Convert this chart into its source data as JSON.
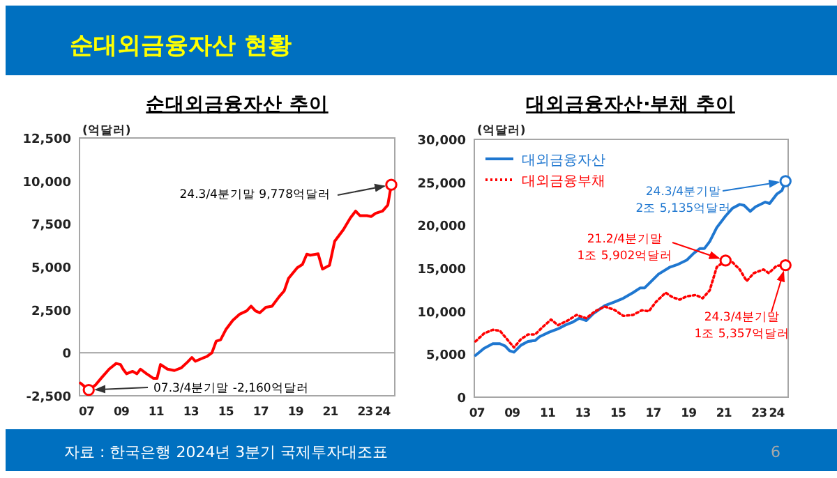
{
  "chart_data": [
    {
      "type": "other",
      "title": "순대외금융자산 현황",
      "annotations": [
        "자료 : 한국은행 2024년 3분기 국제투자대조표",
        "6"
      ]
    },
    {
      "type": "line",
      "title": "순대외금융자산 추이",
      "ylabel": "(억달러)",
      "xlim": [
        2006.6,
        2024.7
      ],
      "ylim": [
        -2500,
        12500
      ],
      "xticks": [
        {
          "value": 2007,
          "label": "07"
        },
        {
          "value": 2009,
          "label": "09"
        },
        {
          "value": 2011,
          "label": "11"
        },
        {
          "value": 2013,
          "label": "13"
        },
        {
          "value": 2015,
          "label": "15"
        },
        {
          "value": 2017,
          "label": "17"
        },
        {
          "value": 2019,
          "label": "19"
        },
        {
          "value": 2021,
          "label": "21"
        },
        {
          "value": 2023,
          "label": "23"
        },
        {
          "value": 2024,
          "label": "24"
        }
      ],
      "yticks": [
        {
          "value": -2500,
          "label": "-2,500"
        },
        0,
        {
          "value": 2500,
          "label": "2,500"
        },
        {
          "value": 5000,
          "label": "5,000"
        },
        {
          "value": 7500,
          "label": "7,500"
        },
        {
          "value": 10000,
          "label": "10,000"
        },
        {
          "value": 12500,
          "label": "12,500"
        }
      ],
      "ref_lines": [
        {
          "axis": "y",
          "value": 0,
          "color": "#a0a0a0"
        }
      ],
      "series": [
        {
          "color": "#ff0000",
          "x": [
            2006.65,
            2007.13,
            2007.5,
            2007.9,
            2008.3,
            2008.7,
            2008.95,
            2009.1,
            2009.3,
            2009.65,
            2009.9,
            2010.1,
            2010.45,
            2010.85,
            2011.05,
            2011.25,
            2011.65,
            2012.05,
            2012.45,
            2012.8,
            2013.05,
            2013.25,
            2013.65,
            2013.9,
            2014.2,
            2014.45,
            2014.7,
            2015,
            2015.4,
            2015.8,
            2016.2,
            2016.45,
            2016.7,
            2016.95,
            2017.3,
            2017.65,
            2018.05,
            2018.35,
            2018.6,
            2019.1,
            2019.4,
            2019.65,
            2019.85,
            2020.3,
            2020.55,
            2020.95,
            2021.25,
            2021.75,
            2022.15,
            2022.45,
            2022.7,
            2023.1,
            2023.35,
            2023.6,
            2024.0,
            2024.3,
            2024.5
          ],
          "values": [
            -1760,
            -2160,
            -1890,
            -1410,
            -950,
            -620,
            -680,
            -950,
            -1220,
            -1080,
            -1220,
            -950,
            -1220,
            -1490,
            -1490,
            -680,
            -950,
            -1030,
            -870,
            -540,
            -270,
            -490,
            -320,
            -220,
            0,
            680,
            760,
            1350,
            1890,
            2250,
            2440,
            2710,
            2440,
            2330,
            2650,
            2710,
            3250,
            3600,
            4330,
            4950,
            5140,
            5740,
            5680,
            5760,
            4870,
            5090,
            6490,
            7170,
            7850,
            8250,
            7980,
            7980,
            7930,
            8120,
            8250,
            8600,
            9778
          ]
        }
      ],
      "annotations": [
        {
          "text": "24.3/4분기말 9,778억달러",
          "x": 2024.5,
          "y": 9778
        },
        {
          "text": "07.3/4분기말 -2,160억달러",
          "x": 2007.13,
          "y": -2160
        }
      ]
    },
    {
      "type": "line",
      "title": "대외금융자산·부채 추이",
      "ylabel": "(억달러)",
      "xlim": [
        2006.85,
        2024.65
      ],
      "ylim": [
        0,
        30000
      ],
      "legend": "top left",
      "xticks": [
        {
          "value": 2007,
          "label": "07"
        },
        {
          "value": 2009,
          "label": "09"
        },
        {
          "value": 2011,
          "label": "11"
        },
        {
          "value": 2013,
          "label": "13"
        },
        {
          "value": 2015,
          "label": "15"
        },
        {
          "value": 2017,
          "label": "17"
        },
        {
          "value": 2019,
          "label": "19"
        },
        {
          "value": 2021,
          "label": "21"
        },
        {
          "value": 2023,
          "label": "23"
        },
        {
          "value": 2024,
          "label": "24"
        }
      ],
      "yticks": [
        0,
        {
          "value": 5000,
          "label": "5,000"
        },
        {
          "value": 10000,
          "label": "10,000"
        },
        {
          "value": 15000,
          "label": "15,000"
        },
        {
          "value": 20000,
          "label": "20,000"
        },
        {
          "value": 25000,
          "label": "25,000"
        },
        {
          "value": 30000,
          "label": "30,000"
        }
      ],
      "series": [
        {
          "name": "대외금융자산",
          "color": "#1f77d0",
          "line_style": "solid",
          "x": [
            2006.92,
            2007.4,
            2007.9,
            2008.3,
            2008.6,
            2008.85,
            2009.1,
            2009.5,
            2009.9,
            2010.3,
            2010.55,
            2011.1,
            2011.6,
            2012.0,
            2012.4,
            2012.8,
            2013.2,
            2013.6,
            2014.25,
            2014.8,
            2015.3,
            2015.85,
            2016.25,
            2016.5,
            2016.9,
            2017.3,
            2017.95,
            2018.35,
            2018.9,
            2019.3,
            2019.65,
            2019.9,
            2020.2,
            2020.6,
            2021.1,
            2021.5,
            2021.9,
            2022.15,
            2022.5,
            2022.8,
            2023.35,
            2023.6,
            2024.0,
            2024.3,
            2024.5
          ],
          "values": [
            4860,
            5680,
            6220,
            6220,
            5950,
            5410,
            5240,
            6050,
            6490,
            6590,
            7030,
            7570,
            7950,
            8380,
            8700,
            9190,
            8920,
            9730,
            10650,
            11080,
            11510,
            12160,
            12700,
            12700,
            13510,
            14320,
            15140,
            15410,
            15950,
            16760,
            17300,
            17300,
            18110,
            19730,
            21080,
            22000,
            22430,
            22320,
            21620,
            22160,
            22700,
            22540,
            23620,
            24050,
            25135
          ]
        },
        {
          "name": "대외금융부채",
          "color": "#ff0000",
          "line_style": "dotted",
          "x": [
            2006.92,
            2007.4,
            2007.9,
            2008.3,
            2008.7,
            2009.1,
            2009.5,
            2009.9,
            2010.3,
            2010.7,
            2011.2,
            2011.6,
            2012.15,
            2012.65,
            2013.2,
            2013.7,
            2014.25,
            2014.8,
            2015.3,
            2015.85,
            2016.35,
            2016.75,
            2017.15,
            2017.7,
            2018.1,
            2018.5,
            2018.9,
            2019.4,
            2019.8,
            2020.2,
            2020.6,
            2021.1,
            2021.5,
            2021.9,
            2022.3,
            2022.7,
            2023.25,
            2023.55,
            2024.0,
            2024.5
          ],
          "values": [
            6490,
            7410,
            7840,
            7730,
            6760,
            5780,
            6760,
            7300,
            7300,
            8110,
            9030,
            8380,
            8920,
            9570,
            9190,
            10000,
            10540,
            10160,
            9460,
            9570,
            10110,
            10000,
            11080,
            12160,
            11620,
            11350,
            11730,
            11890,
            11510,
            12430,
            15140,
            15902,
            15680,
            14860,
            13510,
            14430,
            14860,
            14430,
            15300,
            15357
          ]
        }
      ],
      "annotations": [
        {
          "text": "24.3/4분기말\n2조 5,135억달러",
          "x": 2024.5,
          "y": 25135
        },
        {
          "text": "21.2/4분기말\n1조 5,902억달러",
          "x": 2021.1,
          "y": 15902
        },
        {
          "text": "24.3/4분기말\n1조 5,357억달러",
          "x": 2024.5,
          "y": 15357
        }
      ]
    }
  ]
}
